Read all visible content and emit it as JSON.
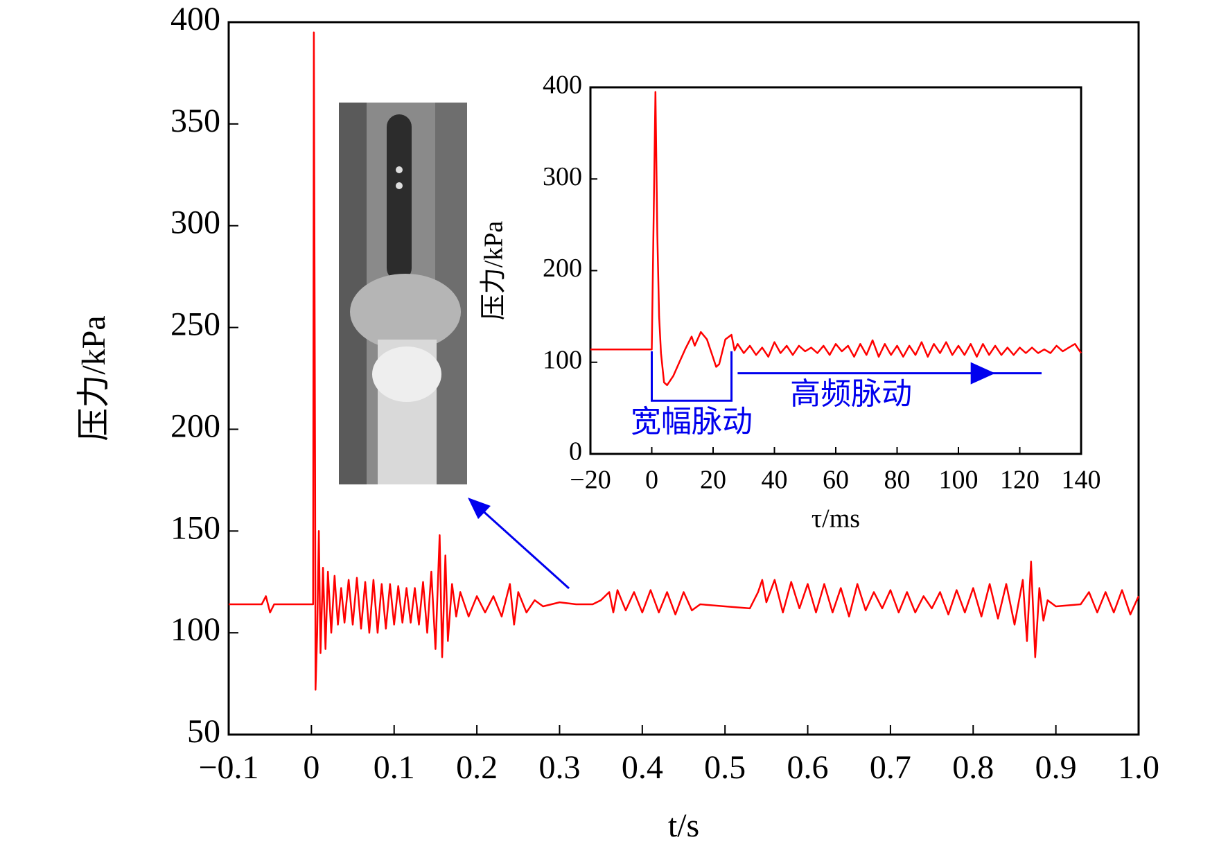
{
  "chart_data": [
    {
      "type": "line",
      "x_label": "t/s",
      "y_label": "压力/kPa",
      "xlim": [
        -0.1,
        1.0
      ],
      "ylim": [
        50,
        400
      ],
      "xticks": [
        {
          "value": -0.1,
          "label": "−0.1"
        },
        0,
        0.1,
        0.2,
        0.3,
        0.4,
        0.5,
        0.6,
        0.7,
        0.8,
        0.9,
        {
          "value": 1,
          "label": "1.0"
        }
      ],
      "yticks": [
        50,
        100,
        150,
        200,
        250,
        300,
        350,
        400
      ],
      "x": [
        -0.1,
        -0.06,
        -0.055,
        -0.05,
        -0.045,
        0,
        0.002,
        0.003,
        0.0045,
        0.005,
        0.007,
        0.009,
        0.011,
        0.014,
        0.017,
        0.02,
        0.024,
        0.028,
        0.032,
        0.036,
        0.04,
        0.045,
        0.05,
        0.055,
        0.06,
        0.065,
        0.07,
        0.075,
        0.08,
        0.085,
        0.09,
        0.095,
        0.1,
        0.105,
        0.11,
        0.115,
        0.12,
        0.125,
        0.13,
        0.135,
        0.14,
        0.145,
        0.15,
        0.155,
        0.158,
        0.162,
        0.165,
        0.17,
        0.175,
        0.18,
        0.19,
        0.2,
        0.21,
        0.22,
        0.23,
        0.24,
        0.245,
        0.25,
        0.26,
        0.27,
        0.28,
        0.3,
        0.32,
        0.34,
        0.35,
        0.36,
        0.365,
        0.37,
        0.38,
        0.39,
        0.4,
        0.41,
        0.42,
        0.43,
        0.44,
        0.45,
        0.46,
        0.47,
        0.5,
        0.53,
        0.54,
        0.545,
        0.55,
        0.56,
        0.57,
        0.58,
        0.59,
        0.6,
        0.61,
        0.62,
        0.63,
        0.64,
        0.65,
        0.66,
        0.67,
        0.68,
        0.69,
        0.7,
        0.71,
        0.72,
        0.73,
        0.74,
        0.75,
        0.76,
        0.77,
        0.78,
        0.79,
        0.8,
        0.81,
        0.82,
        0.83,
        0.84,
        0.85,
        0.86,
        0.865,
        0.87,
        0.875,
        0.88,
        0.885,
        0.89,
        0.9,
        0.93,
        0.94,
        0.95,
        0.96,
        0.97,
        0.98,
        0.99,
        1.0
      ],
      "series": [
        {
          "color": "#ff0000",
          "values": [
            114,
            114,
            118,
            110,
            114,
            114,
            114,
            395,
            180,
            72,
            100,
            150,
            90,
            132,
            92,
            130,
            100,
            128,
            104,
            122,
            105,
            126,
            104,
            127,
            102,
            125,
            100,
            126,
            100,
            124,
            102,
            124,
            104,
            123,
            105,
            122,
            105,
            122,
            104,
            125,
            100,
            130,
            92,
            148,
            88,
            138,
            96,
            124,
            108,
            120,
            108,
            118,
            110,
            118,
            108,
            124,
            104,
            120,
            110,
            116,
            113,
            115,
            114,
            114,
            116,
            120,
            110,
            121,
            111,
            120,
            110,
            121,
            110,
            120,
            109,
            120,
            111,
            114,
            113,
            112,
            120,
            126,
            115,
            126,
            110,
            125,
            112,
            124,
            110,
            124,
            110,
            122,
            108,
            124,
            111,
            120,
            112,
            121,
            110,
            120,
            110,
            118,
            112,
            120,
            109,
            121,
            110,
            122,
            108,
            124,
            107,
            124,
            104,
            126,
            96,
            135,
            88,
            122,
            106,
            116,
            113,
            114,
            120,
            110,
            120,
            110,
            121,
            109,
            118
          ]
        }
      ]
    },
    {
      "type": "line",
      "x_label": "τ/ms",
      "y_label": "压力/kPa",
      "xlim": [
        -20,
        140
      ],
      "ylim": [
        0,
        400
      ],
      "xticks": [
        {
          "value": -20,
          "label": "−20"
        },
        0,
        20,
        40,
        60,
        80,
        100,
        120,
        140
      ],
      "yticks": [
        0,
        100,
        200,
        300,
        400
      ],
      "annotations": [
        "宽幅脉动",
        "高频脉动"
      ],
      "x": [
        -20,
        -1,
        0,
        1.2,
        1.8,
        2.4,
        3,
        4,
        5,
        7,
        9,
        11,
        13,
        14,
        16,
        18,
        20,
        21,
        22,
        24,
        26,
        27,
        28,
        30,
        32,
        34,
        36,
        38,
        40,
        42,
        44,
        46,
        48,
        50,
        52,
        54,
        56,
        58,
        60,
        62,
        64,
        66,
        68,
        70,
        72,
        74,
        76,
        78,
        80,
        82,
        84,
        86,
        88,
        90,
        92,
        94,
        96,
        98,
        100,
        102,
        104,
        106,
        108,
        110,
        112,
        114,
        116,
        118,
        120,
        122,
        124,
        126,
        128,
        130,
        132,
        134,
        136,
        138,
        140
      ],
      "series": [
        {
          "color": "#ff0000",
          "values": [
            114,
            114,
            114,
            395,
            240,
            150,
            110,
            78,
            75,
            85,
            100,
            115,
            128,
            118,
            133,
            125,
            105,
            95,
            98,
            125,
            130,
            113,
            120,
            110,
            118,
            108,
            116,
            106,
            122,
            110,
            118,
            108,
            118,
            112,
            116,
            110,
            118,
            108,
            120,
            112,
            118,
            106,
            120,
            108,
            124,
            106,
            120,
            108,
            118,
            106,
            118,
            108,
            122,
            106,
            120,
            110,
            122,
            108,
            118,
            108,
            120,
            106,
            120,
            108,
            118,
            108,
            116,
            108,
            116,
            110,
            116,
            110,
            114,
            110,
            118,
            112,
            116,
            120,
            110
          ]
        }
      ]
    }
  ]
}
